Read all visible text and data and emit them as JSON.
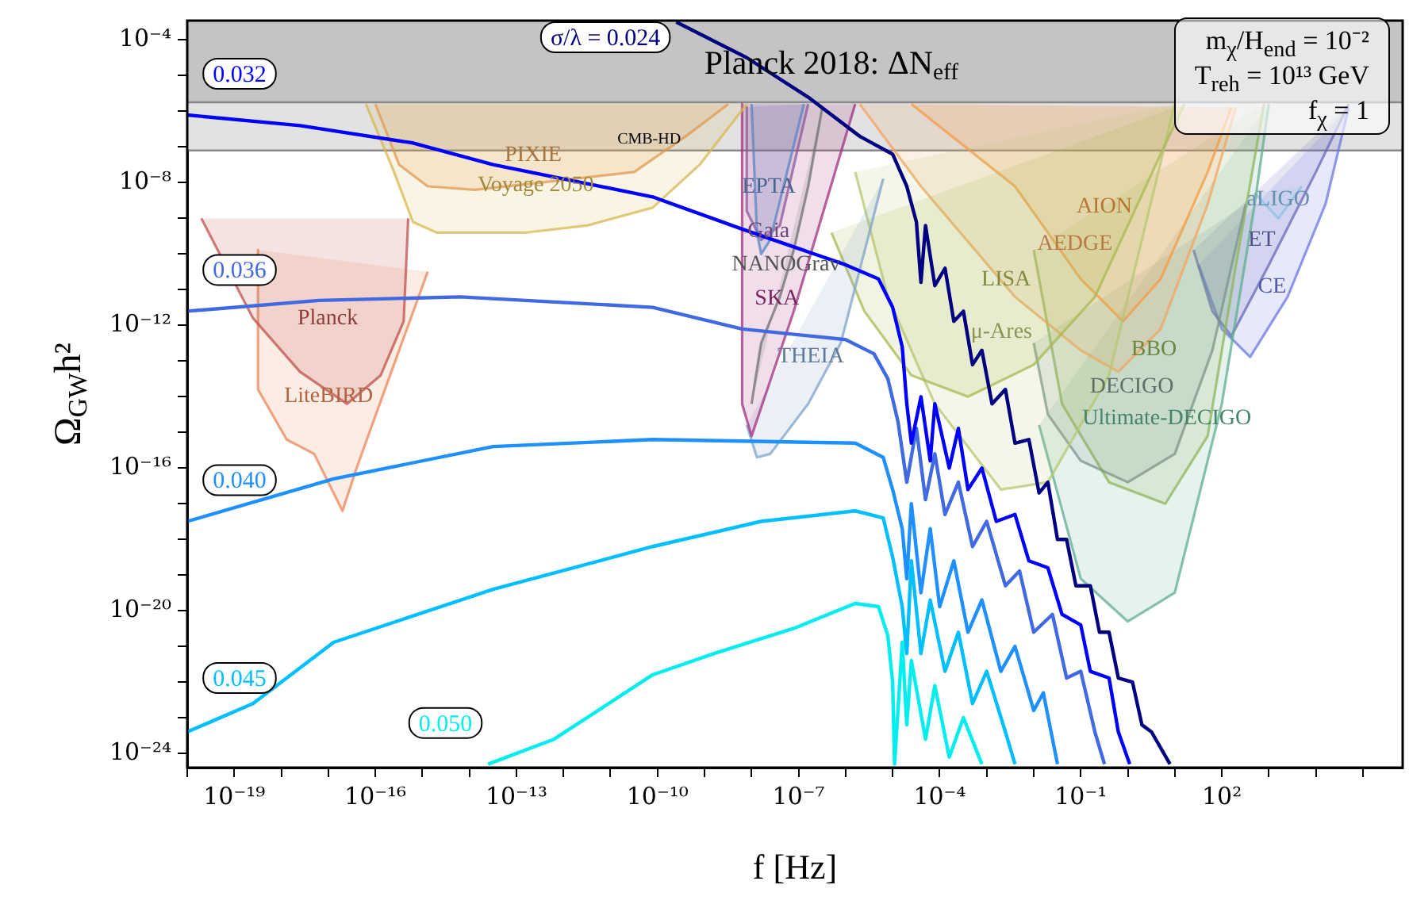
{
  "chart_data": {
    "type": "line",
    "xlabel": "f [Hz]",
    "ylabel": "Ω$_{GW}$h²",
    "log": "xy",
    "marker": "none",
    "xlim": [
      1e-20,
      700000.0
    ],
    "ylim": [
      4e-25,
      0.00035
    ],
    "xticks": [
      {
        "value": 1e-20,
        "label": null
      },
      {
        "value": 1e-19,
        "label": "10⁻¹⁹"
      },
      {
        "value": 1e-18,
        "label": null
      },
      {
        "value": 1e-17,
        "label": null
      },
      {
        "value": 1e-16,
        "label": "10⁻¹⁶"
      },
      {
        "value": 1e-15,
        "label": null
      },
      {
        "value": 1e-14,
        "label": null
      },
      {
        "value": 1e-13,
        "label": "10⁻¹³"
      },
      {
        "value": 1e-12,
        "label": null
      },
      {
        "value": 1e-11,
        "label": null
      },
      {
        "value": 1e-10,
        "label": "10⁻¹⁰"
      },
      {
        "value": 1e-09,
        "label": null
      },
      {
        "value": 1e-08,
        "label": null
      },
      {
        "value": 1e-07,
        "label": "10⁻⁷"
      },
      {
        "value": 1e-06,
        "label": null
      },
      {
        "value": 1e-05,
        "label": null
      },
      {
        "value": 0.0001,
        "label": "10⁻⁴"
      },
      {
        "value": 0.001,
        "label": null
      },
      {
        "value": 0.01,
        "label": null
      },
      {
        "value": 0.1,
        "label": "10⁻¹"
      },
      {
        "value": 1,
        "label": null
      },
      {
        "value": 10,
        "label": null
      },
      {
        "value": 100,
        "label": "10²"
      },
      {
        "value": 1000,
        "label": null
      },
      {
        "value": 10000,
        "label": null
      },
      {
        "value": 100000,
        "label": null
      }
    ],
    "yticks": [
      {
        "value": 1e-24,
        "label": "10⁻²⁴"
      },
      {
        "value": 1e-23,
        "label": null
      },
      {
        "value": 1e-22,
        "label": null
      },
      {
        "value": 1e-21,
        "label": null
      },
      {
        "value": 1e-20,
        "label": "10⁻²⁰"
      },
      {
        "value": 1e-19,
        "label": null
      },
      {
        "value": 1e-18,
        "label": null
      },
      {
        "value": 1e-17,
        "label": null
      },
      {
        "value": 1e-16,
        "label": "10⁻¹⁶"
      },
      {
        "value": 1e-15,
        "label": null
      },
      {
        "value": 1e-14,
        "label": null
      },
      {
        "value": 1e-13,
        "label": null
      },
      {
        "value": 1e-12,
        "label": "10⁻¹²"
      },
      {
        "value": 1e-11,
        "label": null
      },
      {
        "value": 1e-10,
        "label": null
      },
      {
        "value": 1e-09,
        "label": null
      },
      {
        "value": 1e-08,
        "label": "10⁻⁸"
      },
      {
        "value": 1e-07,
        "label": null
      },
      {
        "value": 1e-06,
        "label": null
      },
      {
        "value": 1e-05,
        "label": null
      },
      {
        "value": 0.0001,
        "label": "10⁻⁴"
      }
    ],
    "bands": [
      {
        "axis": "y",
        "from": 1.8e-06,
        "to": 0.00035,
        "label": "Planck 2018: ΔN$_{eff}$",
        "color": "#c4c4c4"
      },
      {
        "axis": "y",
        "from": 8e-08,
        "to": 1.8e-06,
        "label": "CMB-HD",
        "color": "#e2e2e2"
      }
    ],
    "ref_lines": [
      {
        "axis": "y",
        "value": 1.8e-06,
        "color": "#888888"
      },
      {
        "axis": "y",
        "value": 8e-08,
        "color": "#888888"
      }
    ],
    "annotations": [
      "m$_{χ}$/H$_{end}$ = 10⁻²",
      "T$_{reh}$ = 10¹³ GeV",
      "f$_{χ}$ = 1"
    ],
    "series": [
      {
        "type": "area",
        "name": "Planck",
        "color": "#c0504d",
        "x": [
          2e-20,
          2.5e-19,
          2.5e-18,
          2.5e-17,
          1.3e-16,
          4e-16,
          5e-16
        ],
        "values": [
          1e-09,
          1.6e-12,
          5e-14,
          6.3e-15,
          4e-14,
          1.3e-12,
          1e-09
        ]
      },
      {
        "type": "area",
        "name": "LiteBIRD",
        "color": "#e8875a",
        "x": [
          3.2e-19,
          3.2e-19,
          1.3e-18,
          5e-18,
          2e-17,
          4e-17,
          1.6e-16,
          1.3e-15
        ],
        "values": [
          1.3e-10,
          1.6e-14,
          6.3e-16,
          2.5e-16,
          6.3e-18,
          1e-16,
          1.6e-14,
          3.2e-11
        ]
      },
      {
        "type": "area",
        "name": "PIXIE",
        "color": "#e09a50",
        "x": [
          1e-16,
          3.2e-16,
          1.3e-15,
          1.3e-14,
          3.2e-13,
          3.2e-11,
          4e-10,
          3.2e-09
        ],
        "values": [
          1.6e-06,
          3.2e-08,
          7.9e-09,
          6.3e-09,
          1e-08,
          2e-08,
          2e-07,
          1.6e-06
        ]
      },
      {
        "type": "area",
        "name": "Voyage 2050",
        "color": "#d8b850",
        "x": [
          6.3e-17,
          2.5e-16,
          6.3e-16,
          2e-15,
          1.6e-13,
          3.2e-12,
          7.9e-11,
          7.9e-10,
          7.9e-09
        ],
        "values": [
          1.6e-06,
          2e-08,
          7.9e-10,
          4e-10,
          4e-10,
          6.3e-10,
          2e-09,
          3.2e-08,
          1.6e-06
        ]
      },
      {
        "type": "area",
        "name": "NANOGrav",
        "color": "#707070",
        "x": [
          1e-08,
          1.6e-08,
          4e-08,
          7.9e-08,
          1.6e-07,
          3.2e-07
        ],
        "values": [
          6.3e-15,
          3.2e-13,
          6.3e-12,
          1.3e-10,
          7.9e-09,
          1.3e-06
        ]
      },
      {
        "type": "area",
        "name": "EPTA",
        "color": "#5a86c0",
        "x": [
          1e-08,
          1.3e-08,
          1.6e-08,
          2.5e-08,
          1.3e-07
        ],
        "values": [
          1.6e-06,
          4e-10,
          1e-10,
          2.5e-10,
          1.6e-06
        ]
      },
      {
        "type": "area",
        "name": "SKA",
        "color": "#a03080",
        "x": [
          6.3e-09,
          6.3e-09,
          1e-08,
          7.9e-08,
          1.6e-06
        ],
        "values": [
          1.6e-06,
          6.3e-15,
          7.9e-16,
          2.5e-12,
          1.6e-06
        ]
      },
      {
        "type": "area",
        "name": "Gaia",
        "color": "#8e5ea2",
        "x": [
          7.9e-09,
          7.9e-09,
          1.6e-08,
          4e-08,
          1.6e-07
        ],
        "values": [
          1.3e-06,
          1.6e-09,
          2.5e-10,
          6.3e-10,
          1.6e-06
        ]
      },
      {
        "type": "area",
        "name": "THEIA",
        "color": "#7fa3c8",
        "x": [
          7.9e-09,
          1.3e-08,
          2.5e-08,
          1.6e-07,
          7.9e-07,
          3.2e-06,
          6.3e-06
        ],
        "values": [
          1.6e-15,
          2e-16,
          2.5e-16,
          6.3e-15,
          3.2e-13,
          4e-10,
          1.3e-08
        ]
      },
      {
        "type": "area",
        "name": "LISA",
        "color": "#a8b850",
        "x": [
          5e-07,
          2.5e-06,
          2.5e-05,
          0.0004,
          0.01,
          0.2,
          5.0,
          16
        ],
        "values": [
          4e-10,
          2.5e-12,
          4e-14,
          1e-14,
          7.9e-14,
          6.3e-12,
          6.3e-08,
          1.6e-06
        ]
      },
      {
        "type": "area",
        "name": "μ-Ares",
        "color": "#b5c870",
        "x": [
          1.6e-06,
          7.9e-06,
          7.9e-05,
          0.002,
          0.02,
          0.4,
          10
        ],
        "values": [
          2e-08,
          6.3e-12,
          6.3e-15,
          2.5e-17,
          4e-17,
          4e-14,
          1.6e-06
        ]
      },
      {
        "type": "area",
        "name": "AEDGE",
        "color": "#f4a460",
        "x": [
          2e-06,
          4e-05,
          0.004,
          0.1,
          0.63,
          5.0,
          50,
          200
        ],
        "values": [
          1.6e-06,
          7.9e-09,
          6.3e-12,
          2e-13,
          5e-14,
          7.9e-13,
          2.5e-09,
          1.3e-06
        ]
      },
      {
        "type": "area",
        "name": "AION",
        "color": "#f59a40",
        "x": [
          2.5e-05,
          0.004,
          0.1,
          0.79,
          5.0,
          50,
          160
        ],
        "values": [
          1.6e-06,
          7.9e-09,
          2e-11,
          1.3e-12,
          2e-11,
          2e-08,
          1.3e-06
        ]
      },
      {
        "type": "area",
        "name": "DECIGO",
        "color": "#7c9488",
        "x": [
          0.01,
          0.02,
          0.1,
          1,
          10,
          63,
          320
        ],
        "values": [
          3.2e-13,
          3.2e-15,
          1.6e-16,
          4e-17,
          2.5e-16,
          2e-13,
          2.5e-09
        ]
      },
      {
        "type": "area",
        "name": "BBO",
        "color": "#8fb45a",
        "x": [
          0.01,
          0.04,
          0.4,
          6.3,
          50,
          200,
          790
        ],
        "values": [
          1.3e-10,
          6.3e-15,
          4e-17,
          1e-17,
          7.9e-16,
          5e-11,
          1.6e-06
        ]
      },
      {
        "type": "area",
        "name": "Ultimate-DECIGO",
        "color": "#5fae8e",
        "x": [
          0.013,
          0.1,
          1,
          10,
          100,
          500,
          1000
        ],
        "values": [
          1.6e-15,
          7.9e-20,
          5e-21,
          3.2e-20,
          6.3e-15,
          2.5e-09,
          1.6e-06
        ]
      },
      {
        "type": "area",
        "name": "aLIGO",
        "color": "#8fbfe8",
        "x": [
          500,
          1600,
          5000
        ],
        "values": [
          5e-09,
          1e-09,
          7.9e-09
        ]
      },
      {
        "type": "area",
        "name": "ET",
        "color": "#6a6ab8",
        "x": [
          25,
          63,
          160,
          1000,
          10000,
          50000
        ],
        "values": [
          1.3e-10,
          2.5e-12,
          5e-13,
          5e-11,
          2e-08,
          1.6e-06
        ]
      },
      {
        "type": "area",
        "name": "CE",
        "color": "#6b78e0",
        "x": [
          32,
          100,
          400,
          2500,
          16000,
          50000
        ],
        "values": [
          5e-11,
          7.9e-13,
          1.3e-13,
          6.3e-12,
          2.5e-09,
          1.3e-06
        ]
      },
      {
        "type": "line",
        "name": "σ/λ = 0.024",
        "color": "#000080",
        "x": [
          2.5e-10,
          7.9e-09,
          1.6e-07,
          2e-06,
          1e-05,
          2e-05,
          3.2e-05,
          4e-05,
          5e-05,
          7.9e-05,
          0.00013,
          0.0002,
          0.00032,
          0.0005,
          0.00079,
          0.0013,
          0.0025,
          0.004,
          0.0079,
          0.013,
          0.02,
          0.032,
          0.05,
          0.079,
          0.16,
          0.25,
          0.4,
          0.63,
          1.26,
          2.0,
          3.2,
          7.9
        ],
        "values": [
          0.00032,
          3.2e-05,
          2.5e-06,
          2e-07,
          6.3e-08,
          7.9e-09,
          7.9e-10,
          1.6e-11,
          6.3e-10,
          1.3e-11,
          4e-11,
          1.3e-12,
          2.5e-12,
          7.9e-14,
          2e-13,
          6.3e-15,
          1.6e-14,
          5e-16,
          6.3e-16,
          2e-17,
          4e-17,
          1e-18,
          1e-18,
          5e-20,
          5e-20,
          2.5e-21,
          2.5e-21,
          1.3e-22,
          1e-22,
          6.3e-24,
          4e-24,
          5e-25
        ]
      },
      {
        "type": "line",
        "name": "0.032",
        "color": "#0000ff",
        "x": [
          1e-20,
          2.5e-18,
          6.3e-16,
          3.2e-14,
          7.9e-11,
          6.3e-09,
          1e-06,
          5e-06,
          1e-05,
          1.6e-05,
          2e-05,
          2.5e-05,
          4e-05,
          6.3e-05,
          7.9e-05,
          0.00016,
          0.00025,
          0.0004,
          0.00079,
          0.0016,
          0.004,
          0.0079,
          0.02,
          0.04,
          0.1,
          0.16,
          0.4,
          0.63,
          1.1
        ],
        "values": [
          7.9e-07,
          4e-07,
          1.3e-07,
          3.2e-08,
          4e-09,
          5e-10,
          5e-11,
          2e-11,
          3.2e-12,
          2.5e-13,
          6.3e-15,
          5e-16,
          1e-14,
          1.6e-16,
          6.3e-15,
          1e-16,
          1.3e-15,
          2.5e-17,
          1e-16,
          3.2e-18,
          5e-18,
          2.5e-19,
          1.6e-19,
          7.9e-21,
          4e-21,
          2e-22,
          1.3e-22,
          4e-24,
          5e-25
        ]
      },
      {
        "type": "line",
        "name": "0.036",
        "color": "#4169e1",
        "x": [
          1e-20,
          6.3e-18,
          6.3e-15,
          7.9e-11,
          6.3e-09,
          1e-06,
          4e-06,
          7.9e-06,
          1.3e-05,
          2e-05,
          3.2e-05,
          5e-05,
          7.9e-05,
          0.00013,
          0.00025,
          0.0005,
          0.001,
          0.0025,
          0.005,
          0.01,
          0.025,
          0.05,
          0.1,
          0.2,
          0.32
        ],
        "values": [
          2.5e-12,
          5e-12,
          6.3e-12,
          3.2e-12,
          7.9e-13,
          4e-13,
          1.6e-13,
          3.2e-14,
          2e-15,
          4e-17,
          1.3e-15,
          1.3e-17,
          2.5e-16,
          5e-18,
          4e-17,
          6.3e-19,
          3.2e-18,
          5e-20,
          1.3e-19,
          2.5e-21,
          7.9e-21,
          1.3e-22,
          2e-22,
          4e-24,
          5e-25
        ]
      },
      {
        "type": "line",
        "name": "0.040",
        "color": "#1e90ff",
        "x": [
          1e-20,
          1.3e-17,
          3.2e-14,
          7.9e-11,
          1.6e-06,
          6.3e-06,
          1e-05,
          1.6e-05,
          2e-05,
          2.5e-05,
          4e-05,
          6.3e-05,
          0.0001,
          0.0002,
          0.0004,
          0.00079,
          0.002,
          0.004,
          0.01,
          0.016,
          0.032
        ],
        "values": [
          3.2e-18,
          5e-17,
          4e-16,
          6.3e-16,
          5e-16,
          2e-16,
          2.5e-17,
          2e-18,
          7.9e-20,
          1e-17,
          3.2e-20,
          2e-18,
          1.3e-20,
          2.5e-19,
          2.5e-21,
          2e-20,
          2e-22,
          1e-21,
          1.6e-23,
          5e-23,
          5e-25
        ]
      },
      {
        "type": "line",
        "name": "0.045",
        "color": "#00bfff",
        "x": [
          1e-20,
          2.5e-19,
          1.3e-17,
          3.2e-14,
          7.9e-11,
          1.6e-08,
          1.6e-06,
          6.3e-06,
          1e-05,
          1.6e-05,
          2e-05,
          2.5e-05,
          4e-05,
          6.3e-05,
          0.00013,
          0.00025,
          0.0005,
          0.001,
          0.0025,
          0.004
        ],
        "values": [
          4e-24,
          2.5e-23,
          1.3e-21,
          4e-20,
          6.3e-19,
          3.2e-18,
          6.3e-18,
          4e-18,
          3.2e-19,
          1.3e-20,
          6.3e-22,
          2.5e-19,
          6.3e-22,
          2e-20,
          2e-22,
          2.5e-21,
          2.5e-23,
          2e-22,
          4e-24,
          5e-25
        ]
      },
      {
        "type": "line",
        "name": "0.050",
        "color": "#00eeee",
        "x": [
          2.5e-14,
          6.3e-13,
          7.9e-11,
          1.6e-09,
          7.9e-08,
          1.6e-06,
          5e-06,
          7.9e-06,
          1e-05,
          1.1e-05,
          1.6e-05,
          2e-05,
          2.5e-05,
          5e-05,
          7.9e-05,
          0.00016,
          0.00032,
          0.00079
        ],
        "values": [
          5e-25,
          2.5e-24,
          1.6e-22,
          6.3e-22,
          3.2e-21,
          1.6e-20,
          1.3e-20,
          2e-21,
          1e-22,
          5e-25,
          1.3e-21,
          6.3e-24,
          4e-22,
          2.5e-24,
          7.9e-23,
          7.9e-25,
          1e-23,
          5e-25
        ]
      }
    ]
  }
}
